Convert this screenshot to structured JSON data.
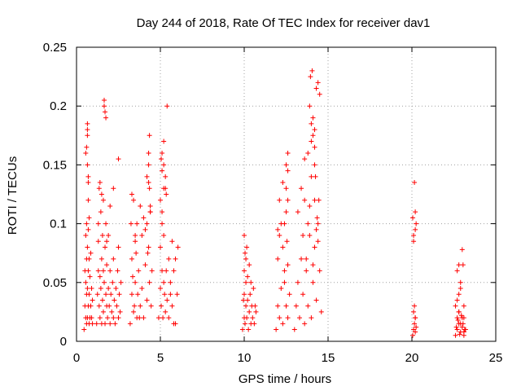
{
  "chart_data": {
    "type": "scatter",
    "title": "Day 244 of 2018, Rate Of TEC Index for receiver dav1",
    "xlabel": "GPS time / hours",
    "ylabel": "ROTI / TECUs",
    "xlim": [
      0,
      25
    ],
    "ylim": [
      0,
      0.25
    ],
    "xticks": [
      0,
      5,
      10,
      15,
      20,
      25
    ],
    "yticks": [
      0,
      0.05,
      0.1,
      0.15,
      0.2,
      0.25
    ],
    "xtick_labels": [
      "0",
      "5",
      "10",
      "15",
      "20",
      "25"
    ],
    "ytick_labels": [
      "0",
      "0.05",
      "0.1",
      "0.15",
      "0.2",
      "0.25"
    ],
    "grid": true,
    "marker": "plus",
    "color": "#ff0000",
    "series": [
      {
        "x": [
          0.45,
          0.5,
          0.5,
          0.55,
          0.55,
          0.55,
          0.6,
          0.6,
          0.6,
          0.6,
          0.65,
          0.65,
          0.65,
          0.65,
          0.65,
          0.7,
          0.7,
          0.7,
          0.7,
          0.75,
          0.75,
          0.75,
          0.8,
          0.8,
          0.85,
          0.85,
          0.9,
          0.9,
          0.95,
          0.95,
          0.6,
          0.65,
          0.7,
          0.7,
          0.75,
          0.55,
          0.65,
          1.2,
          1.25,
          1.3,
          1.3,
          1.35,
          1.4,
          1.4,
          1.45,
          1.5,
          1.5,
          1.55,
          1.6,
          1.6,
          1.65,
          1.7,
          1.7,
          1.75,
          1.8,
          1.8,
          1.85,
          1.9,
          1.9,
          1.95,
          2.0,
          2.0,
          2.05,
          2.1,
          2.15,
          2.2,
          2.2,
          2.25,
          2.3,
          2.35,
          2.4,
          2.45,
          2.5,
          2.5,
          2.55,
          2.6,
          2.65,
          1.3,
          1.35,
          1.45,
          1.5,
          1.6,
          1.65,
          1.75,
          1.65,
          1.7,
          1.75,
          1.55,
          1.8,
          1.4,
          2.5,
          2.2,
          2.0,
          3.2,
          3.3,
          3.3,
          3.4,
          3.5,
          3.5,
          3.6,
          3.7,
          3.8,
          3.9,
          4.0,
          4.1,
          4.2,
          4.3,
          4.35,
          4.4,
          4.45,
          4.5,
          3.25,
          3.35,
          3.45,
          3.55,
          3.65,
          3.75,
          3.3,
          3.4,
          3.5,
          3.6,
          3.8,
          3.9,
          4.0,
          4.1,
          4.2,
          4.3,
          4.35,
          4.4,
          4.25,
          4.3,
          4.35,
          4.3,
          4.4,
          4.2,
          4.9,
          5.0,
          5.0,
          5.05,
          5.1,
          5.1,
          5.15,
          5.2,
          5.2,
          5.25,
          5.3,
          5.35,
          5.4,
          5.5,
          5.6,
          5.7,
          5.8,
          5.9,
          6.0,
          6.05,
          5.0,
          5.1,
          5.2,
          5.3,
          5.1,
          5.2,
          5.3,
          5.35,
          5.4,
          5.05,
          5.1,
          5.2,
          5.5,
          5.7,
          5.9,
          5.6,
          5.8,
          9.9,
          10.0,
          10.0,
          10.05,
          10.1,
          10.1,
          10.15,
          10.2,
          10.25,
          10.3,
          10.35,
          10.4,
          10.45,
          10.5,
          10.55,
          10.6,
          10.65,
          10.7,
          10.0,
          10.1,
          10.2,
          10.3,
          10.4,
          10.0,
          10.05,
          10.15,
          9.95,
          11.9,
          12.0,
          12.0,
          12.1,
          12.2,
          12.3,
          12.4,
          12.5,
          12.6,
          12.7,
          12.1,
          12.2,
          12.3,
          12.4,
          12.5,
          12.6,
          12.0,
          12.1,
          12.3,
          12.4,
          12.5,
          12.6,
          12.5,
          12.6,
          12.6,
          12.55,
          13.0,
          13.1,
          13.2,
          13.3,
          13.4,
          13.5,
          13.6,
          13.7,
          13.8,
          13.9,
          14.0,
          14.1,
          14.2,
          14.3,
          14.4,
          14.5,
          14.6,
          13.2,
          13.4,
          13.6,
          13.8,
          14.0,
          14.2,
          14.4,
          13.5,
          13.7,
          13.9,
          14.1,
          14.3,
          13.6,
          13.8,
          14.0,
          14.2,
          13.9,
          14.0,
          14.1,
          14.2,
          14.3,
          14.4,
          14.5,
          13.95,
          14.05,
          14.1,
          14.2,
          14.25,
          14.35,
          14.45,
          20.05,
          20.1,
          20.15,
          20.2,
          20.1,
          20.15,
          20.2,
          20.25,
          20.1,
          20.2,
          20.25,
          20.05,
          20.2,
          20.1,
          20.15,
          20.2,
          22.6,
          22.7,
          22.8,
          22.9,
          23.0,
          23.1,
          23.2,
          22.7,
          22.8,
          22.9,
          23.0,
          23.1,
          22.65,
          22.75,
          22.85,
          22.95,
          23.05,
          23.15,
          22.8,
          22.9,
          22.7,
          22.8,
          22.6,
          22.7,
          23.1,
          23.1,
          23.05,
          23.0,
          22.9,
          22.8
        ],
        "y": [
          0.01,
          0.03,
          0.06,
          0.02,
          0.05,
          0.09,
          0.015,
          0.04,
          0.07,
          0.1,
          0.02,
          0.045,
          0.08,
          0.15,
          0.18,
          0.03,
          0.06,
          0.095,
          0.135,
          0.015,
          0.04,
          0.07,
          0.02,
          0.055,
          0.03,
          0.075,
          0.02,
          0.045,
          0.015,
          0.035,
          0.165,
          0.185,
          0.14,
          0.12,
          0.105,
          0.16,
          0.175,
          0.015,
          0.04,
          0.06,
          0.085,
          0.03,
          0.02,
          0.055,
          0.045,
          0.015,
          0.07,
          0.035,
          0.025,
          0.06,
          0.05,
          0.015,
          0.08,
          0.04,
          0.03,
          0.065,
          0.02,
          0.045,
          0.09,
          0.03,
          0.015,
          0.06,
          0.04,
          0.025,
          0.05,
          0.02,
          0.07,
          0.035,
          0.015,
          0.045,
          0.03,
          0.06,
          0.02,
          0.08,
          0.04,
          0.025,
          0.05,
          0.1,
          0.13,
          0.11,
          0.125,
          0.12,
          0.2,
          0.19,
          0.205,
          0.195,
          0.1,
          0.09,
          0.085,
          0.135,
          0.155,
          0.13,
          0.115,
          0.015,
          0.04,
          0.07,
          0.025,
          0.05,
          0.09,
          0.02,
          0.06,
          0.03,
          0.045,
          0.02,
          0.065,
          0.035,
          0.08,
          0.05,
          0.11,
          0.03,
          0.06,
          0.1,
          0.055,
          0.03,
          0.075,
          0.04,
          0.02,
          0.125,
          0.12,
          0.085,
          0.1,
          0.115,
          0.09,
          0.105,
          0.095,
          0.14,
          0.16,
          0.13,
          0.115,
          0.075,
          0.135,
          0.175,
          0.15,
          0.11,
          0.1,
          0.02,
          0.045,
          0.08,
          0.03,
          0.06,
          0.1,
          0.02,
          0.05,
          0.13,
          0.04,
          0.025,
          0.06,
          0.035,
          0.02,
          0.05,
          0.03,
          0.06,
          0.015,
          0.04,
          0.08,
          0.12,
          0.11,
          0.15,
          0.14,
          0.16,
          0.17,
          0.13,
          0.125,
          0.2,
          0.155,
          0.145,
          0.09,
          0.07,
          0.085,
          0.07,
          0.04,
          0.015,
          0.01,
          0.02,
          0.04,
          0.015,
          0.03,
          0.05,
          0.02,
          0.035,
          0.01,
          0.025,
          0.04,
          0.015,
          0.03,
          0.02,
          0.045,
          0.015,
          0.03,
          0.025,
          0.06,
          0.07,
          0.055,
          0.065,
          0.05,
          0.09,
          0.075,
          0.08,
          0.035,
          0.01,
          0.03,
          0.07,
          0.02,
          0.045,
          0.015,
          0.06,
          0.03,
          0.02,
          0.04,
          0.09,
          0.1,
          0.08,
          0.05,
          0.11,
          0.065,
          0.095,
          0.12,
          0.135,
          0.1,
          0.13,
          0.145,
          0.15,
          0.12,
          0.16,
          0.085,
          0.01,
          0.03,
          0.05,
          0.02,
          0.07,
          0.04,
          0.015,
          0.06,
          0.03,
          0.09,
          0.02,
          0.05,
          0.08,
          0.035,
          0.1,
          0.06,
          0.025,
          0.11,
          0.13,
          0.12,
          0.1,
          0.14,
          0.12,
          0.085,
          0.09,
          0.07,
          0.115,
          0.065,
          0.095,
          0.155,
          0.16,
          0.17,
          0.15,
          0.2,
          0.185,
          0.175,
          0.165,
          0.215,
          0.22,
          0.21,
          0.225,
          0.23,
          0.19,
          0.18,
          0.14,
          0.105,
          0.12,
          0.005,
          0.01,
          0.015,
          0.02,
          0.025,
          0.03,
          0.008,
          0.012,
          0.09,
          0.095,
          0.1,
          0.105,
          0.11,
          0.085,
          0.135,
          0.02,
          0.005,
          0.01,
          0.015,
          0.008,
          0.012,
          0.005,
          0.01,
          0.02,
          0.025,
          0.015,
          0.02,
          0.008,
          0.012,
          0.018,
          0.006,
          0.022,
          0.015,
          0.01,
          0.04,
          0.05,
          0.06,
          0.065,
          0.03,
          0.035,
          0.02,
          0.03,
          0.065,
          0.078,
          0.045,
          0.025
        ]
      }
    ]
  }
}
